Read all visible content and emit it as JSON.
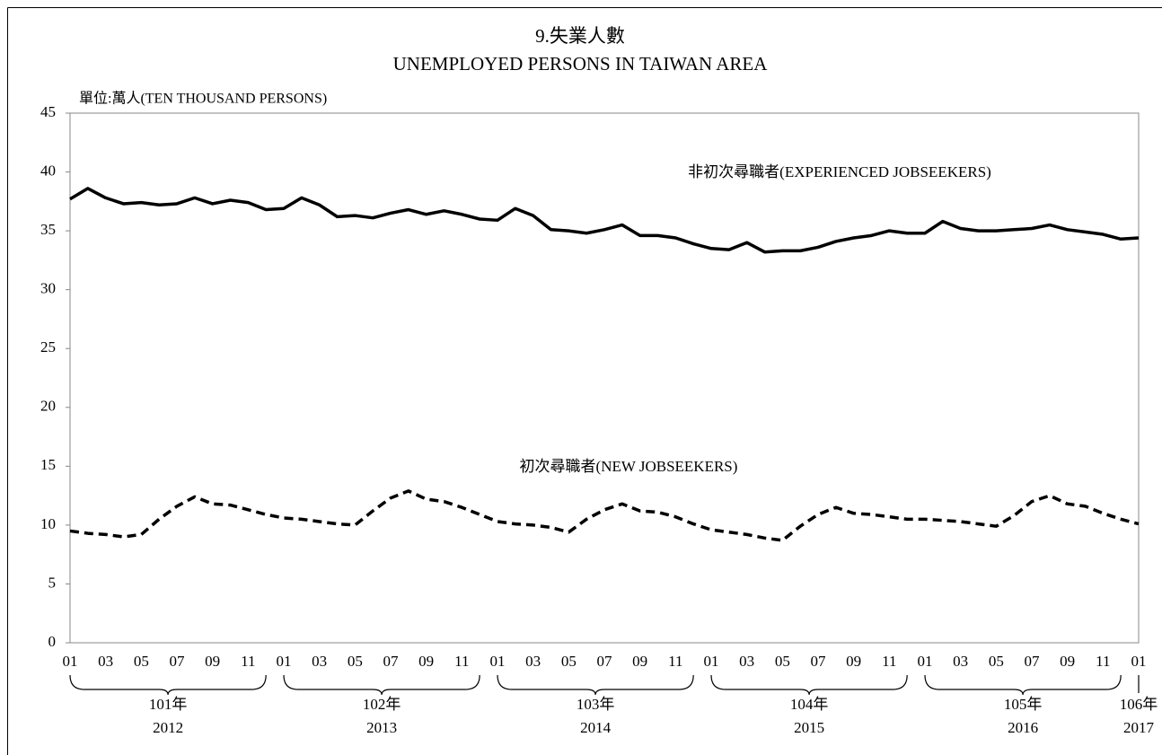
{
  "chart_data": {
    "type": "line",
    "title": "9.失業人數",
    "subtitle": "UNEMPLOYED PERSONS IN TAIWAN AREA",
    "unit_label": "單位:萬人(TEN THOUSAND PERSONS)",
    "categories": [
      "01",
      null,
      "03",
      null,
      "05",
      null,
      "07",
      null,
      "09",
      null,
      "11",
      null,
      "01",
      null,
      "03",
      null,
      "05",
      null,
      "07",
      null,
      "09",
      null,
      "11",
      null,
      "01",
      null,
      "03",
      null,
      "05",
      null,
      "07",
      null,
      "09",
      null,
      "11",
      null,
      "01",
      null,
      "03",
      null,
      "05",
      null,
      "07",
      null,
      "09",
      null,
      "11",
      null,
      "01",
      null,
      "03",
      null,
      "05",
      null,
      "07",
      null,
      "09",
      null,
      "11",
      null,
      "01"
    ],
    "groups": [
      {
        "label": "101年",
        "year": "2012"
      },
      {
        "label": "102年",
        "year": "2013"
      },
      {
        "label": "103年",
        "year": "2014"
      },
      {
        "label": "104年",
        "year": "2015"
      },
      {
        "label": "105年",
        "year": "2016"
      },
      {
        "label": "106年",
        "year": "2017"
      }
    ],
    "series": [
      {
        "name": "非初次尋職者(EXPERIENCED JOBSEEKERS)",
        "color": "#000000",
        "dashed": false,
        "values": [
          37.7,
          38.6,
          37.8,
          37.3,
          37.4,
          37.2,
          37.3,
          37.8,
          37.3,
          37.6,
          37.4,
          36.8,
          36.9,
          37.8,
          37.2,
          36.2,
          36.3,
          36.1,
          36.5,
          36.8,
          36.4,
          36.7,
          36.4,
          36.0,
          35.9,
          36.9,
          36.3,
          35.1,
          35.0,
          34.8,
          35.1,
          35.5,
          34.6,
          34.6,
          34.4,
          33.9,
          33.5,
          33.4,
          34.0,
          33.2,
          33.3,
          33.3,
          33.6,
          34.1,
          34.4,
          34.6,
          35.0,
          34.8,
          34.8,
          35.8,
          35.2,
          35.0,
          35.0,
          35.1,
          35.2,
          35.5,
          35.1,
          34.9,
          34.7,
          34.3,
          34.4
        ]
      },
      {
        "name": "初次尋職者(NEW JOBSEEKERS)",
        "color": "#000000",
        "dashed": true,
        "values": [
          9.5,
          9.3,
          9.2,
          9.0,
          9.2,
          10.5,
          11.6,
          12.4,
          11.8,
          11.7,
          11.3,
          10.9,
          10.6,
          10.5,
          10.3,
          10.1,
          10.0,
          11.2,
          12.3,
          12.9,
          12.2,
          12.0,
          11.5,
          10.9,
          10.3,
          10.1,
          10.0,
          9.8,
          9.4,
          10.5,
          11.3,
          11.8,
          11.2,
          11.1,
          10.7,
          10.1,
          9.6,
          9.4,
          9.2,
          8.9,
          8.7,
          9.9,
          10.9,
          11.5,
          11.0,
          10.9,
          10.7,
          10.5,
          10.5,
          10.4,
          10.3,
          10.1,
          9.9,
          10.8,
          12.0,
          12.5,
          11.8,
          11.6,
          11.0,
          10.5,
          10.1
        ]
      }
    ],
    "ylim": [
      0,
      45
    ],
    "yticks": [
      0,
      5,
      10,
      15,
      20,
      25,
      30,
      35,
      40,
      45
    ]
  }
}
